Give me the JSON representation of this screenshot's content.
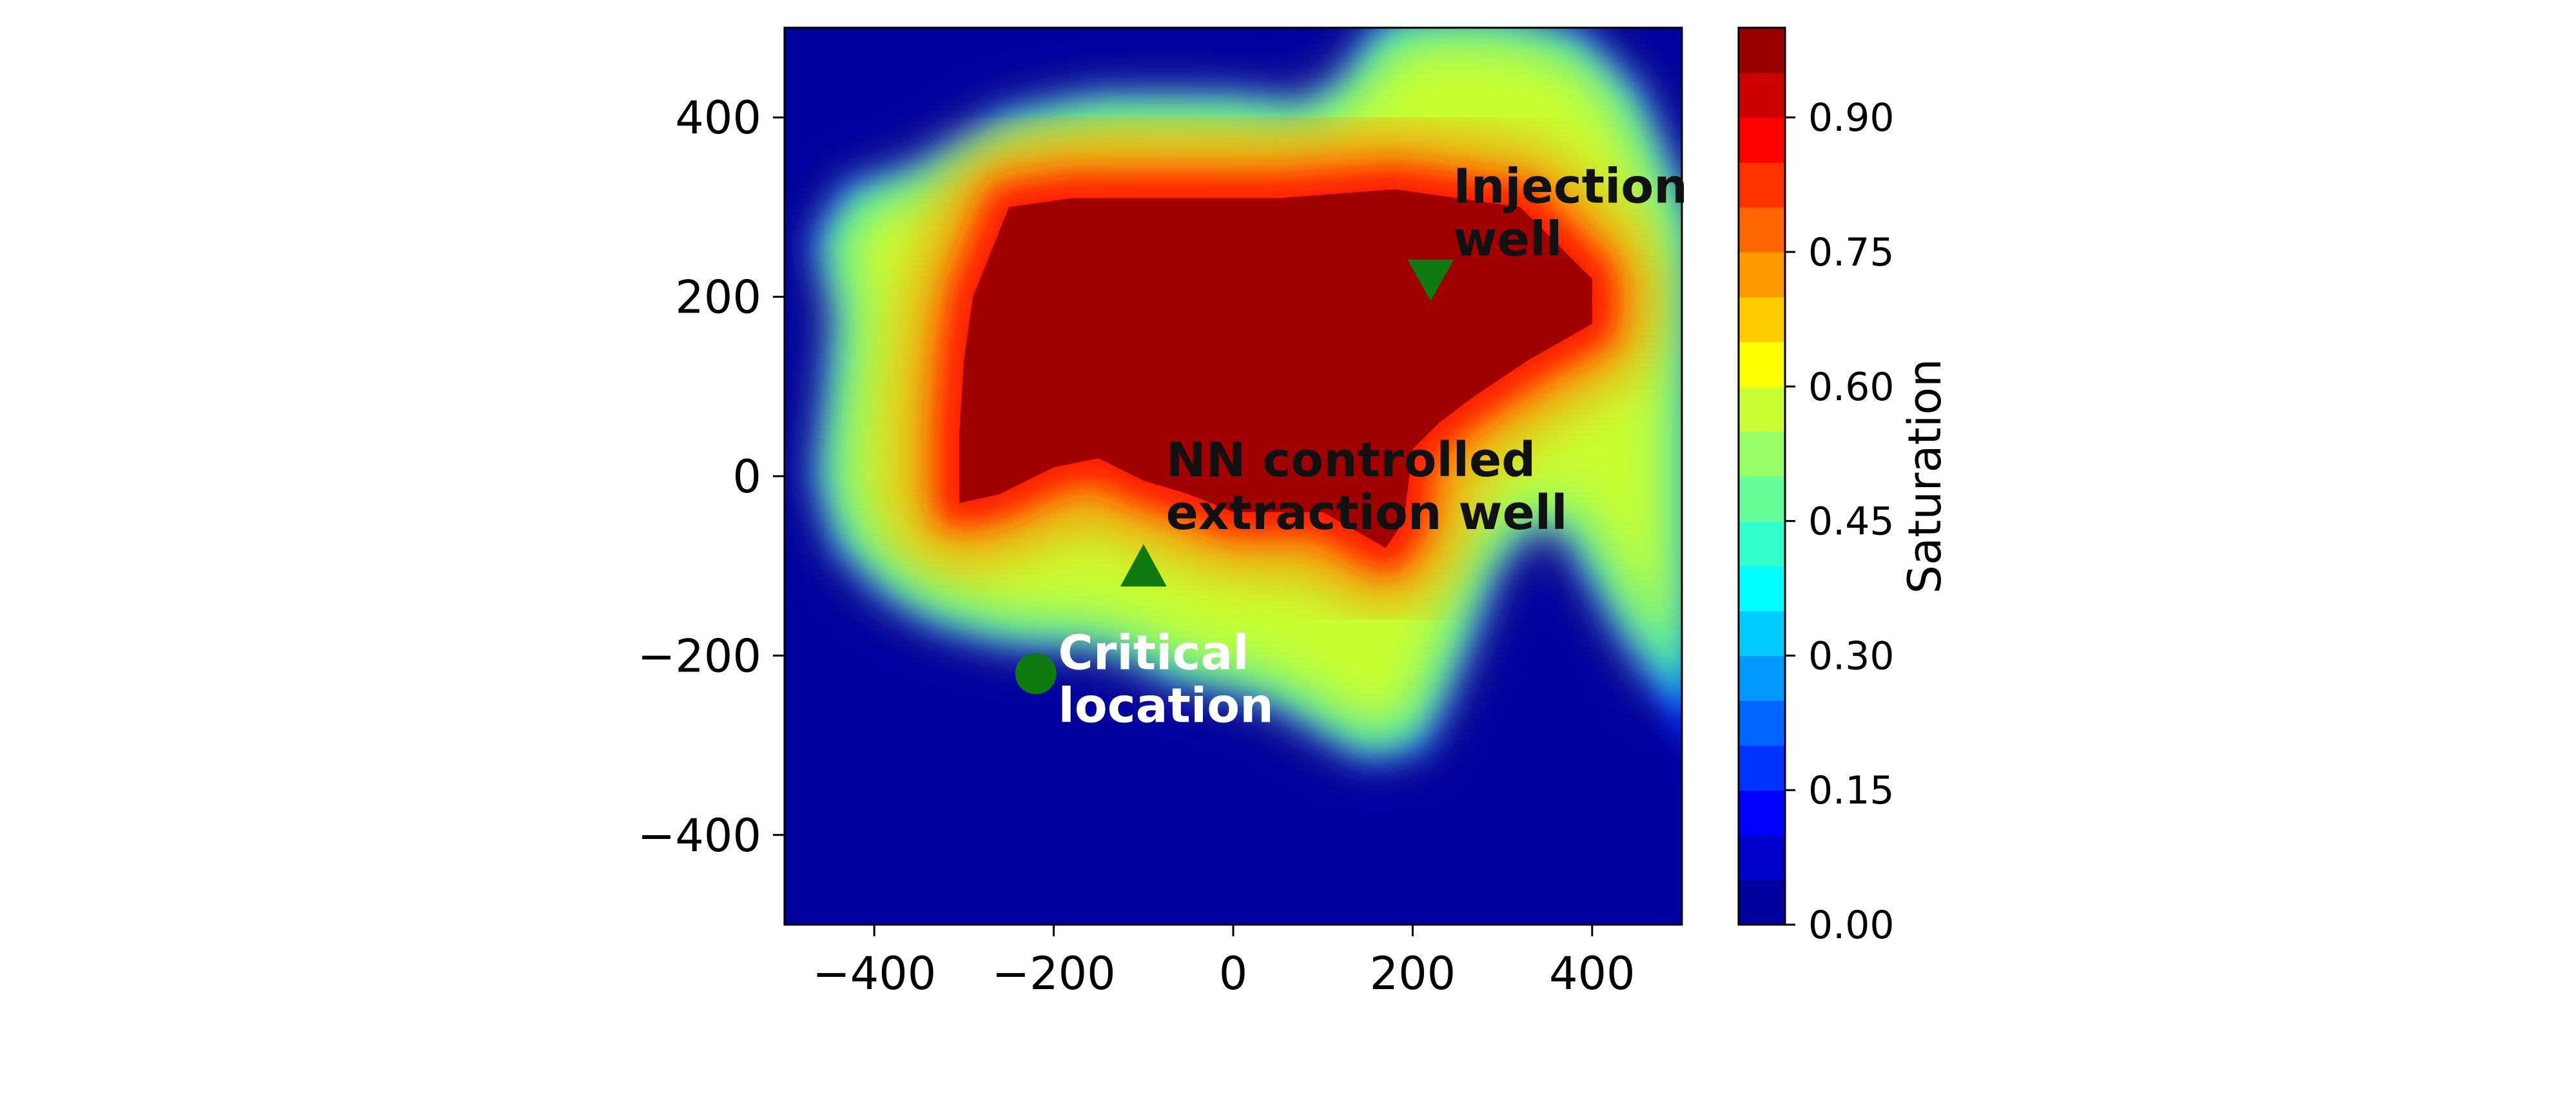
{
  "chart_data": {
    "type": "heatmap",
    "title": "",
    "xlabel": "",
    "ylabel": "",
    "xlim": [
      -500,
      500
    ],
    "ylim": [
      -500,
      500
    ],
    "x_ticks": [
      -400,
      -200,
      0,
      200,
      400
    ],
    "y_ticks": [
      -400,
      -200,
      0,
      200,
      400
    ],
    "x_tick_labels": [
      "−400",
      "−200",
      "0",
      "200",
      "400"
    ],
    "y_tick_labels": [
      "−400",
      "−200",
      "0",
      "200",
      "400"
    ],
    "colorbar": {
      "label": "Saturation",
      "range": [
        0.0,
        1.0
      ],
      "levels": 20,
      "ticks": [
        0.0,
        0.15,
        0.3,
        0.45,
        0.6,
        0.75,
        0.9
      ],
      "tick_labels": [
        "0.00",
        "0.15",
        "0.30",
        "0.45",
        "0.60",
        "0.75",
        "0.90"
      ],
      "colormap": "jet"
    },
    "plume_outline": [
      [
        -450,
        260
      ],
      [
        -420,
        310
      ],
      [
        -350,
        330
      ],
      [
        -250,
        390
      ],
      [
        -150,
        410
      ],
      [
        0,
        410
      ],
      [
        80,
        400
      ],
      [
        130,
        430
      ],
      [
        170,
        490
      ],
      [
        200,
        500
      ],
      [
        300,
        500
      ],
      [
        380,
        480
      ],
      [
        440,
        420
      ],
      [
        500,
        280
      ],
      [
        500,
        -250
      ],
      [
        440,
        -160
      ],
      [
        400,
        -90
      ],
      [
        380,
        -50
      ],
      [
        330,
        -40
      ],
      [
        300,
        -70
      ],
      [
        280,
        -100
      ],
      [
        250,
        -180
      ],
      [
        220,
        -250
      ],
      [
        200,
        -290
      ],
      [
        150,
        -300
      ],
      [
        100,
        -270
      ],
      [
        50,
        -240
      ],
      [
        0,
        -225
      ],
      [
        -60,
        -215
      ],
      [
        -110,
        -190
      ],
      [
        -160,
        -175
      ],
      [
        -220,
        -175
      ],
      [
        -260,
        -170
      ],
      [
        -330,
        -150
      ],
      [
        -380,
        -120
      ],
      [
        -430,
        -70
      ],
      [
        -450,
        0
      ],
      [
        -440,
        80
      ],
      [
        -430,
        180
      ]
    ],
    "plume_core": [
      [
        -290,
        200
      ],
      [
        -250,
        300
      ],
      [
        -180,
        310
      ],
      [
        -50,
        310
      ],
      [
        50,
        310
      ],
      [
        180,
        320
      ],
      [
        320,
        300
      ],
      [
        400,
        220
      ],
      [
        400,
        170
      ],
      [
        330,
        130
      ],
      [
        270,
        90
      ],
      [
        230,
        60
      ],
      [
        200,
        30
      ],
      [
        190,
        -50
      ],
      [
        170,
        -80
      ],
      [
        100,
        -40
      ],
      [
        50,
        -40
      ],
      [
        0,
        -40
      ],
      [
        -50,
        -20
      ],
      [
        -100,
        -5
      ],
      [
        -150,
        20
      ],
      [
        -200,
        10
      ],
      [
        -260,
        -20
      ],
      [
        -305,
        -30
      ],
      [
        -305,
        50
      ],
      [
        -300,
        130
      ]
    ],
    "wells": [
      {
        "label": "Injection\nwell",
        "x": 220,
        "y": 220,
        "marker": "triangle-down"
      },
      {
        "label": "NN controlled\nextraction well",
        "x": -100,
        "y": -100,
        "marker": "triangle-up"
      },
      {
        "label": "Critical\nlocation",
        "x": -220,
        "y": -220,
        "marker": "circle"
      }
    ],
    "annotations": [
      {
        "lines": [
          "Injection",
          "well"
        ],
        "x": 245,
        "y": 305,
        "color": "#111111"
      },
      {
        "lines": [
          "NN controlled",
          "extraction well"
        ],
        "x": -75,
        "y": 0,
        "color": "#111111"
      },
      {
        "lines": [
          "Critical",
          "location"
        ],
        "x": -195,
        "y": -215,
        "color": "#ffffff"
      }
    ],
    "colors": {
      "background_low": "#00009f",
      "marker": "#0f7a0f"
    }
  }
}
